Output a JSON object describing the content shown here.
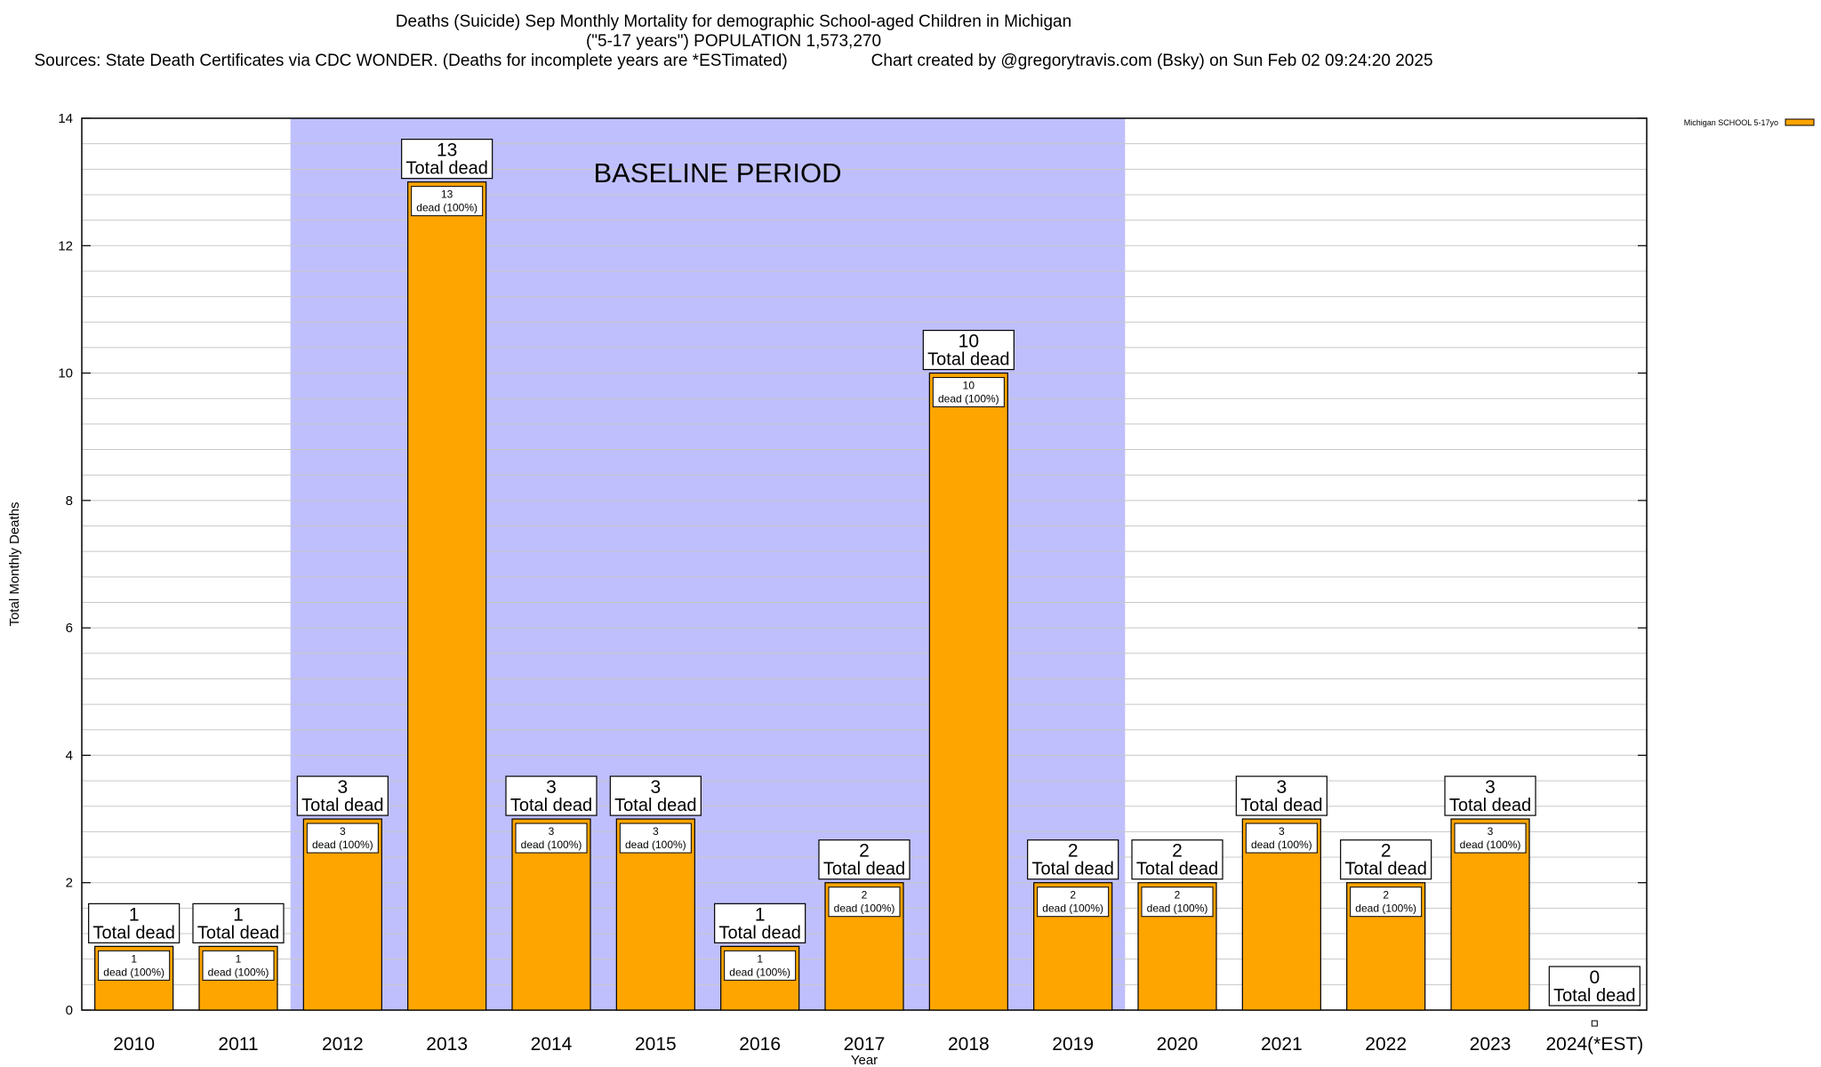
{
  "header": {
    "title": "Deaths (Suicide) Sep Monthly Mortality for demographic School-aged Children in Michigan",
    "subtitle": "(\"5-17 years\") POPULATION 1,573,270",
    "sources": "Sources: State Death Certificates via CDC WONDER. (Deaths for incomplete years are *ESTimated)",
    "credit": "Chart created by @gregorytravis.com (Bsky) on Sun Feb 02 09:24:20 2025"
  },
  "chart_data": {
    "type": "bar",
    "categories": [
      "2010",
      "2011",
      "2012",
      "2013",
      "2014",
      "2015",
      "2016",
      "2017",
      "2018",
      "2019",
      "2020",
      "2021",
      "2022",
      "2023",
      "2024(*EST)"
    ],
    "series": [
      {
        "name": "Michigan SCHOOL 5-17yo",
        "values": [
          1,
          1,
          3,
          13,
          3,
          3,
          1,
          2,
          10,
          2,
          2,
          3,
          2,
          3,
          0
        ]
      }
    ],
    "total_label": "Total dead",
    "segment_label": "dead (100%)",
    "xlabel": "Year",
    "ylabel": "Total Monthly Deaths",
    "ylim": [
      0,
      14
    ],
    "yticks": [
      0,
      2,
      4,
      6,
      8,
      10,
      12,
      14
    ],
    "minor_step": 0.4,
    "grid": true,
    "legend_position": "top-right",
    "baseline": {
      "label": "BASELINE PERIOD",
      "start": "2012",
      "end": "2019"
    },
    "colors": {
      "bar": "#ffa500",
      "baseline": "#bfbffd",
      "grid": "#c8c8c8"
    }
  }
}
